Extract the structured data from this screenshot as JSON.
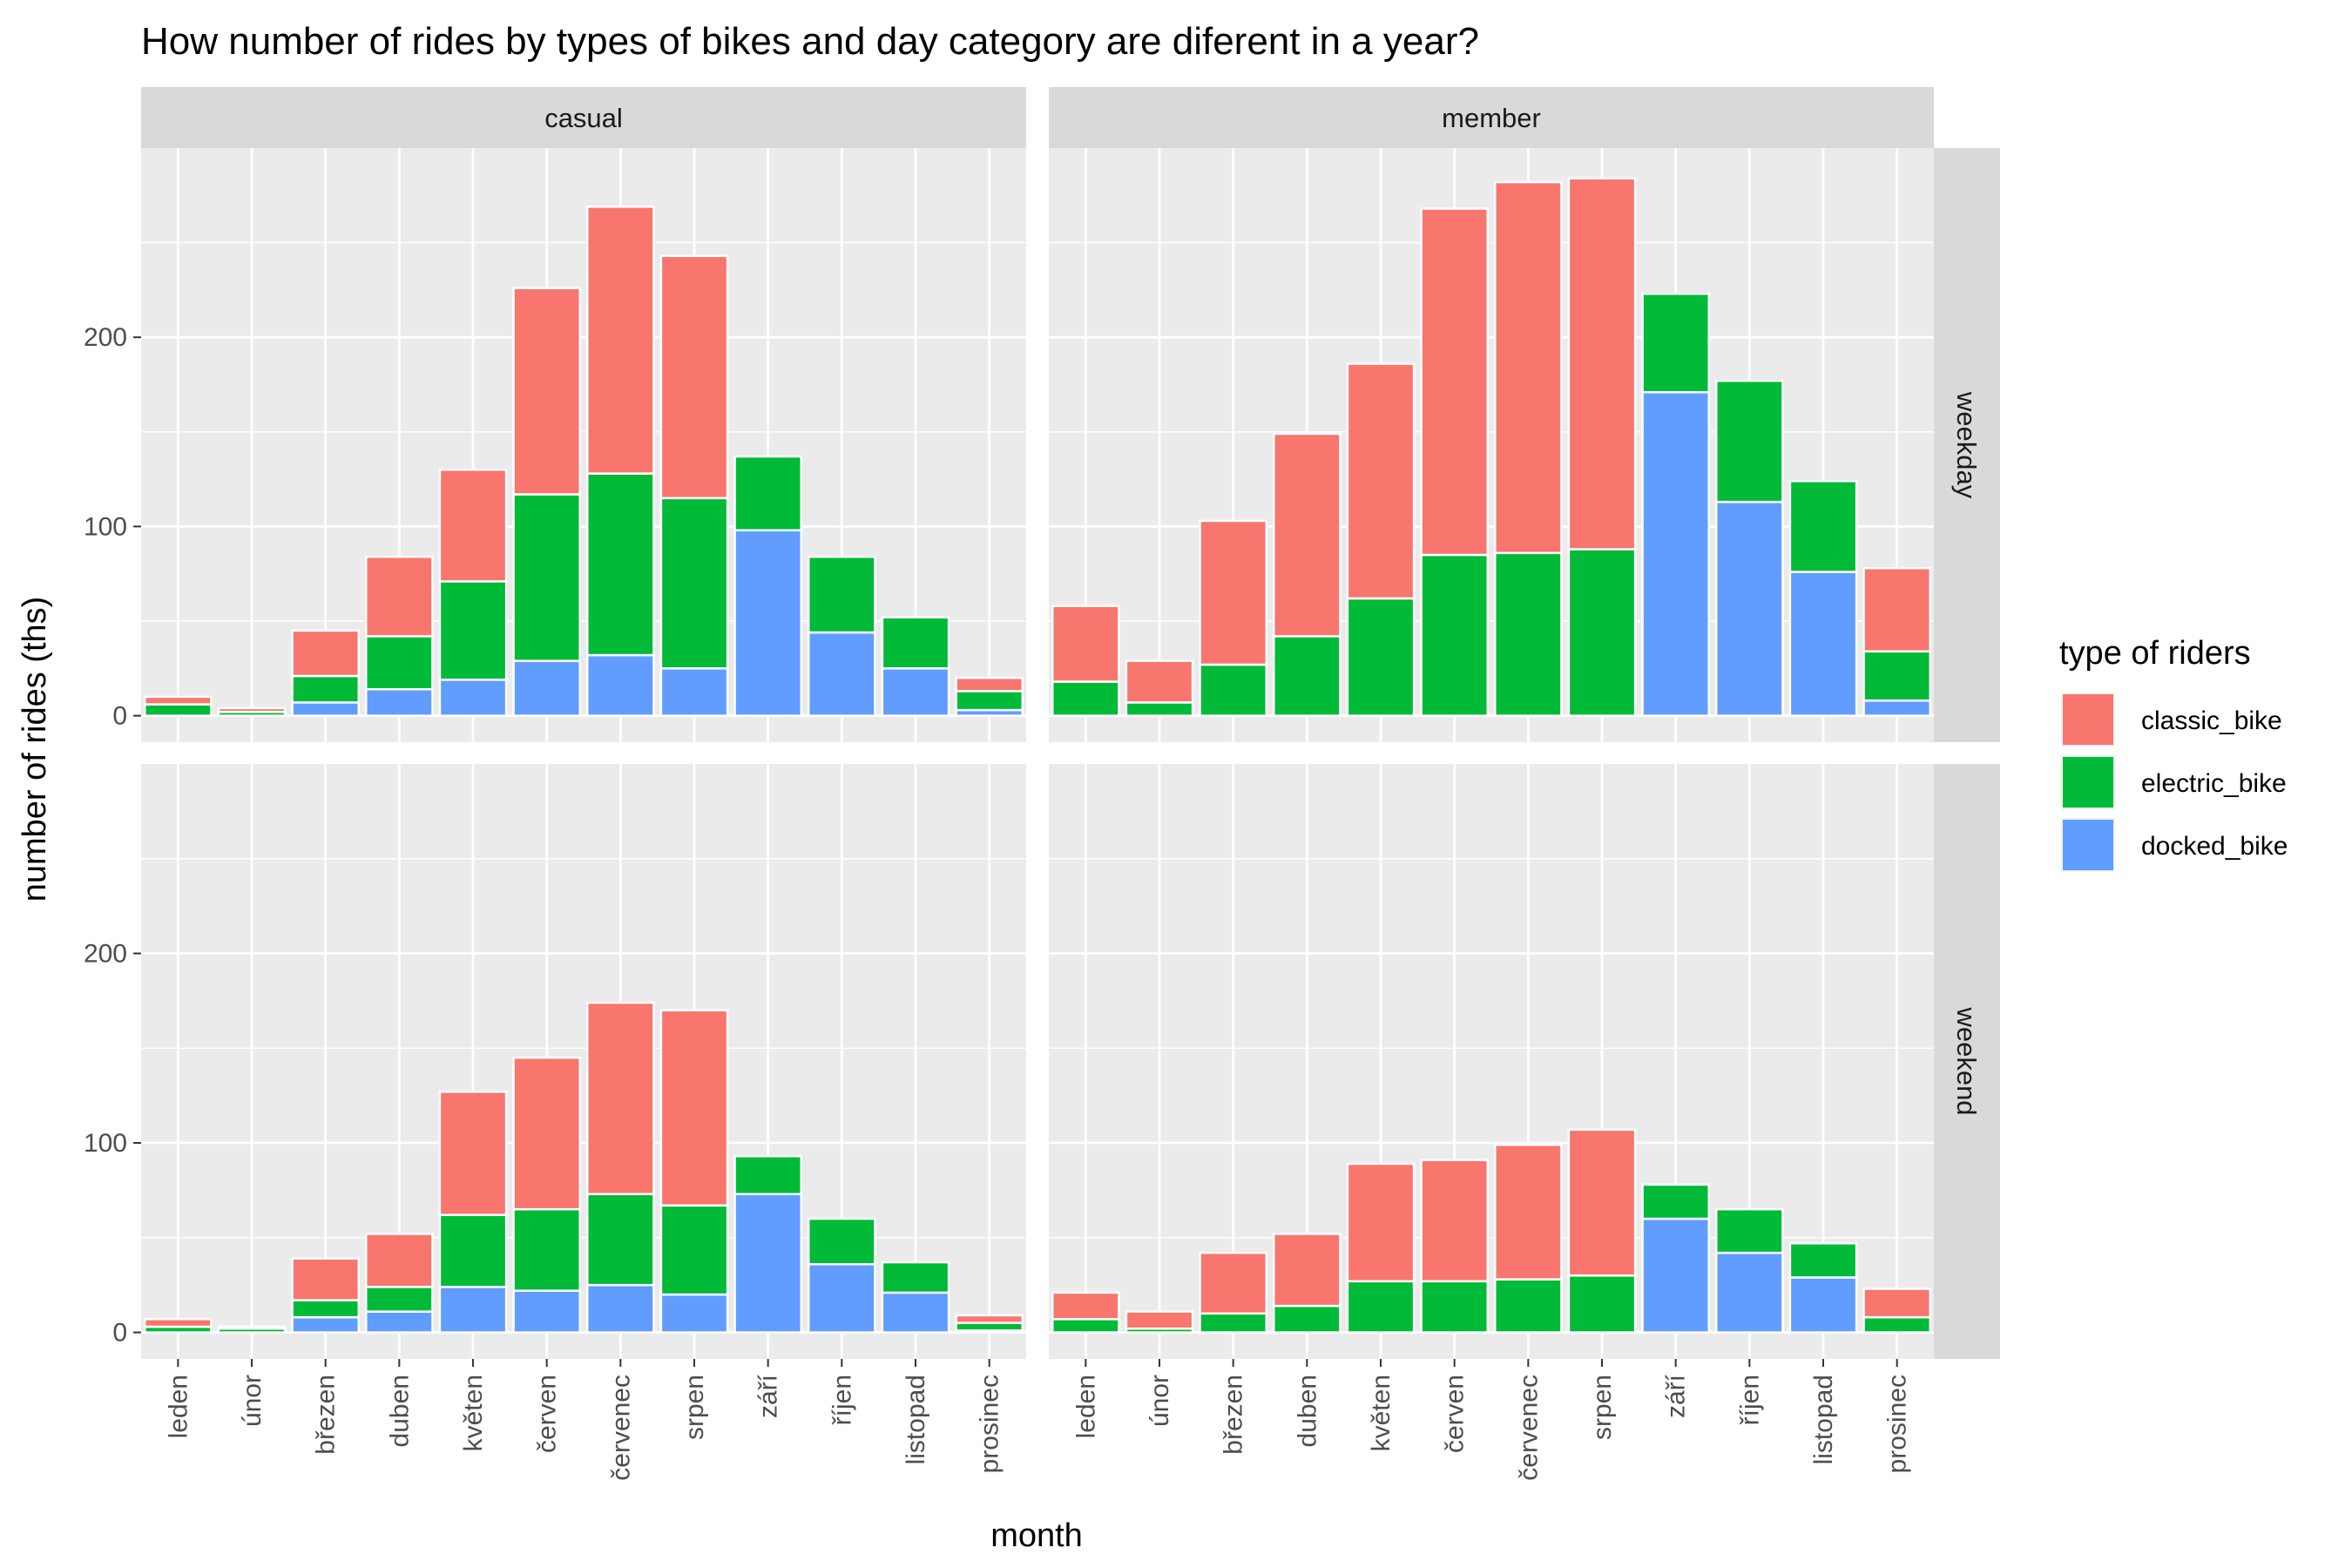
{
  "chart_data": {
    "type": "bar",
    "stacked": true,
    "title": "How number of rides by types of bikes and day category are diferent in a year?",
    "xlabel": "month",
    "ylabel": "number of rides (ths)",
    "ylim": [
      -14,
      300
    ],
    "yticks": [
      0,
      100,
      200
    ],
    "grid": true,
    "legend": {
      "title": "type of riders",
      "placement": "right",
      "entries": [
        "classic_bike",
        "electric_bike",
        "docked_bike"
      ]
    },
    "categories": [
      "leden",
      "únor",
      "březen",
      "duben",
      "květen",
      "červen",
      "červenec",
      "srpen",
      "září",
      "říjen",
      "listopad",
      "prosinec"
    ],
    "facet_columns": [
      "casual",
      "member"
    ],
    "facet_rows": [
      "weekday",
      "weekend"
    ],
    "colors": {
      "classic_bike": "#F8766D",
      "electric_bike": "#00BA38",
      "docked_bike": "#619CFF"
    },
    "panels": [
      {
        "column": "casual",
        "row": "weekday",
        "series": [
          {
            "name": "docked_bike",
            "values": [
              0,
              0,
              7,
              14,
              19,
              29,
              32,
              25,
              98,
              44,
              25,
              3
            ]
          },
          {
            "name": "electric_bike",
            "values": [
              6,
              2,
              14,
              28,
              52,
              88,
              96,
              90,
              39,
              40,
              27,
              10
            ]
          },
          {
            "name": "classic_bike",
            "values": [
              4,
              2,
              24,
              42,
              59,
              109,
              141,
              128,
              0,
              0,
              0,
              7
            ]
          }
        ]
      },
      {
        "column": "member",
        "row": "weekday",
        "series": [
          {
            "name": "docked_bike",
            "values": [
              0,
              0,
              0,
              0,
              0,
              0,
              0,
              0,
              171,
              113,
              76,
              8
            ]
          },
          {
            "name": "electric_bike",
            "values": [
              18,
              7,
              27,
              42,
              62,
              85,
              86,
              88,
              52,
              64,
              48,
              26
            ]
          },
          {
            "name": "classic_bike",
            "values": [
              40,
              22,
              76,
              107,
              124,
              183,
              196,
              196,
              0,
              0,
              0,
              44
            ]
          }
        ]
      },
      {
        "column": "casual",
        "row": "weekend",
        "series": [
          {
            "name": "docked_bike",
            "values": [
              0,
              0,
              8,
              11,
              24,
              22,
              25,
              20,
              73,
              36,
              21,
              1
            ]
          },
          {
            "name": "electric_bike",
            "values": [
              3,
              2,
              9,
              13,
              38,
              43,
              48,
              47,
              20,
              24,
              16,
              4
            ]
          },
          {
            "name": "classic_bike",
            "values": [
              4,
              1,
              22,
              28,
              65,
              80,
              101,
              103,
              0,
              0,
              0,
              4
            ]
          }
        ]
      },
      {
        "column": "member",
        "row": "weekend",
        "series": [
          {
            "name": "docked_bike",
            "values": [
              0,
              0,
              0,
              0,
              0,
              0,
              0,
              0,
              60,
              42,
              29,
              0
            ]
          },
          {
            "name": "electric_bike",
            "values": [
              7,
              2,
              10,
              14,
              27,
              27,
              28,
              30,
              18,
              23,
              18,
              8
            ]
          },
          {
            "name": "classic_bike",
            "values": [
              14,
              9,
              32,
              38,
              62,
              64,
              71,
              77,
              0,
              0,
              0,
              15
            ]
          }
        ]
      }
    ]
  }
}
